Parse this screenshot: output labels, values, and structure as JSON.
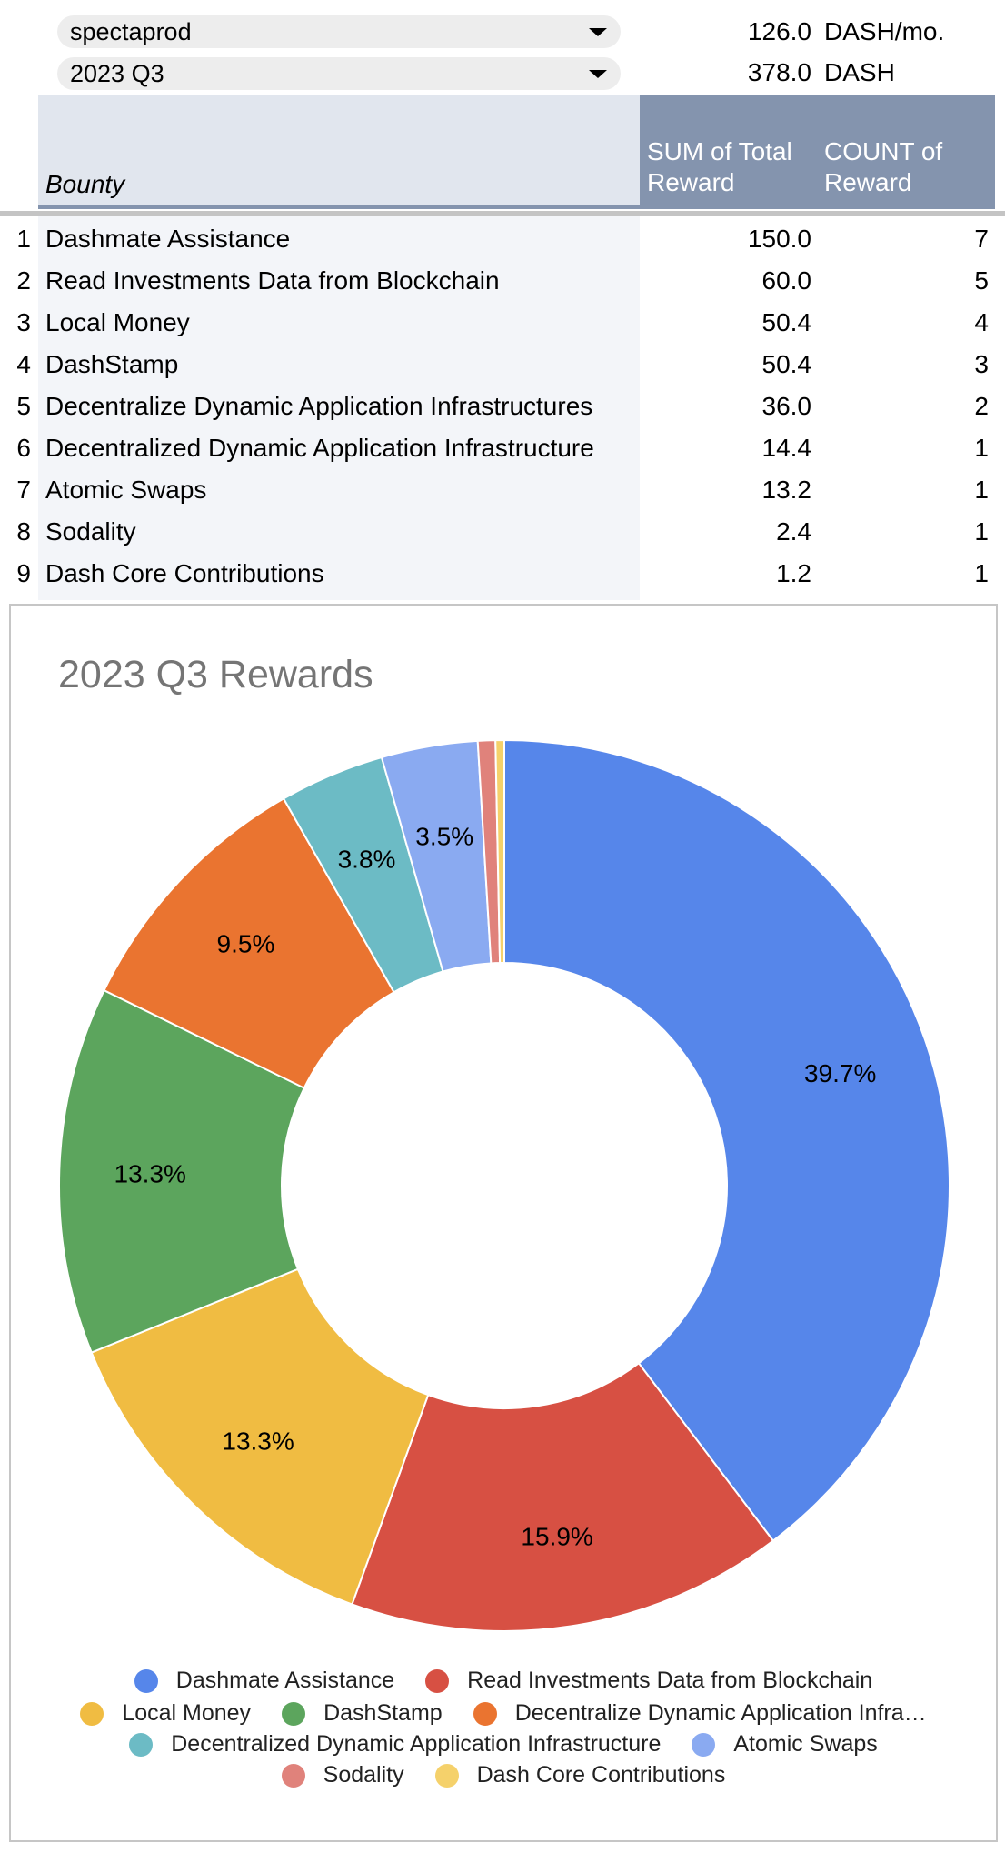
{
  "filters": {
    "user": "spectaprod",
    "user_rate_value": "126.0",
    "user_rate_unit": "DASH/mo.",
    "period": "2023 Q3",
    "period_total_value": "378.0",
    "period_total_unit": "DASH"
  },
  "table": {
    "col_bounty": "Bounty",
    "col_sum": "SUM of Total Reward",
    "col_count": "COUNT of Reward",
    "rows": [
      {
        "index": "1",
        "bounty": "Dashmate Assistance",
        "sum": "150.0",
        "count": "7"
      },
      {
        "index": "2",
        "bounty": "Read Investments Data from Blockchain",
        "sum": "60.0",
        "count": "5"
      },
      {
        "index": "3",
        "bounty": "Local Money",
        "sum": "50.4",
        "count": "4"
      },
      {
        "index": "4",
        "bounty": "DashStamp",
        "sum": "50.4",
        "count": "3"
      },
      {
        "index": "5",
        "bounty": "Decentralize Dynamic Application Infrastructures",
        "sum": "36.0",
        "count": "2"
      },
      {
        "index": "6",
        "bounty": "Decentralized Dynamic Application Infrastructure",
        "sum": "14.4",
        "count": "1"
      },
      {
        "index": "7",
        "bounty": "Atomic Swaps",
        "sum": "13.2",
        "count": "1"
      },
      {
        "index": "8",
        "bounty": "Sodality",
        "sum": "2.4",
        "count": "1"
      },
      {
        "index": "9",
        "bounty": "Dash Core Contributions",
        "sum": "1.2",
        "count": "1"
      }
    ]
  },
  "chart_data": {
    "type": "pie",
    "title": "2023 Q3 Rewards",
    "donut": true,
    "legend_position": "bottom",
    "categories": [
      "Dashmate Assistance",
      "Read Investments Data from Blockchain",
      "Local Money",
      "DashStamp",
      "Decentralize Dynamic Application Infrastructures",
      "Decentralized Dynamic Application Infrastructure",
      "Atomic Swaps",
      "Sodality",
      "Dash Core Contributions"
    ],
    "legend_labels": [
      "Dashmate Assistance",
      "Read Investments Data from Blockchain",
      "Local Money",
      "DashStamp",
      "Decentralize Dynamic Application Infra…",
      "Decentralized Dynamic Application Infrastructure",
      "Atomic Swaps",
      "Sodality",
      "Dash Core Contributions"
    ],
    "values": [
      150.0,
      60.0,
      50.4,
      50.4,
      36.0,
      14.4,
      13.2,
      2.4,
      1.2
    ],
    "percent_labels": [
      "39.7%",
      "15.9%",
      "13.3%",
      "13.3%",
      "9.5%",
      "3.8%",
      "3.5%",
      "",
      ""
    ],
    "colors": [
      "#5686ea",
      "#d75043",
      "#f0bc42",
      "#5ca55d",
      "#ea7430",
      "#6cbbc5",
      "#8aaaf1",
      "#e0827b",
      "#f5d16b"
    ]
  }
}
